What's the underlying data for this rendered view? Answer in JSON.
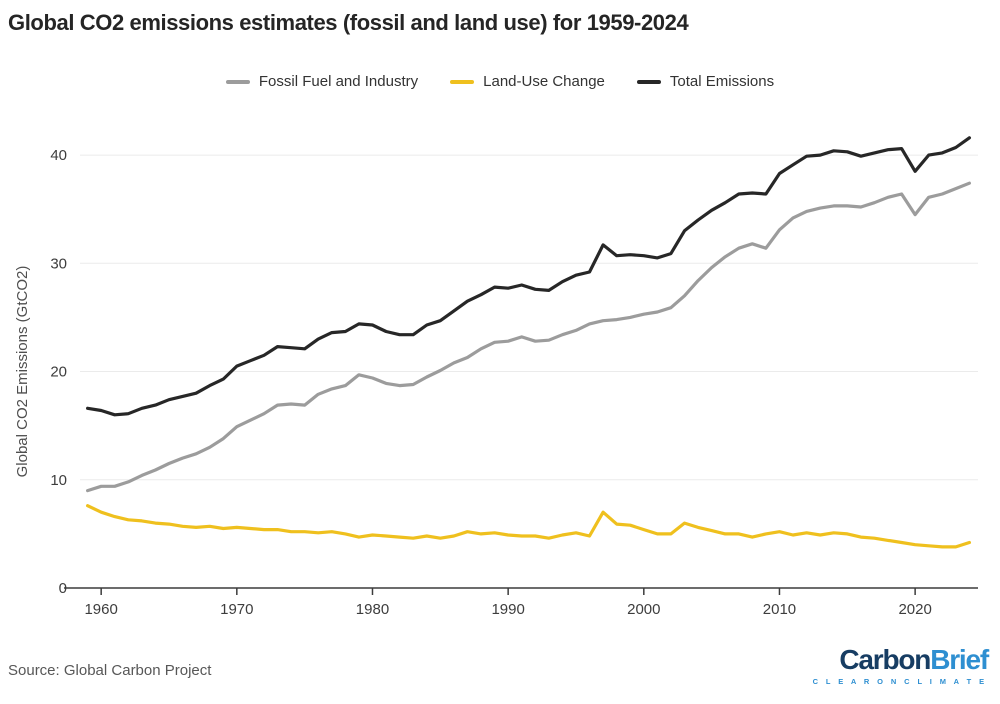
{
  "header": {
    "note": "title lives in chart_data.title"
  },
  "source": {
    "text": "Source: Global Carbon Project"
  },
  "logo": {
    "part1": "Carbon",
    "part2": "Brief",
    "tagline": "C L E A R   O N   C L I M A T E",
    "navy": "#173d63",
    "blue": "#2e8fd1"
  },
  "chart_data": {
    "type": "line",
    "title": "Global CO2 emissions estimates (fossil and land use) for 1959-2024",
    "xlabel": "",
    "ylabel": "Global CO2 Emissions (GtCO2)",
    "xlim": [
      1959,
      2024
    ],
    "ylim": [
      0,
      44
    ],
    "yticks": [
      0,
      10,
      20,
      30,
      40
    ],
    "xticks": [
      1960,
      1970,
      1980,
      1990,
      2000,
      2010,
      2020
    ],
    "grid": "horizontal",
    "legend_position": "top-center",
    "background": "#ffffff",
    "gridline_color": "#ebebeb",
    "axis_color": "#3c3c3c",
    "x": [
      1959,
      1960,
      1961,
      1962,
      1963,
      1964,
      1965,
      1966,
      1967,
      1968,
      1969,
      1970,
      1971,
      1972,
      1973,
      1974,
      1975,
      1976,
      1977,
      1978,
      1979,
      1980,
      1981,
      1982,
      1983,
      1984,
      1985,
      1986,
      1987,
      1988,
      1989,
      1990,
      1991,
      1992,
      1993,
      1994,
      1995,
      1996,
      1997,
      1998,
      1999,
      2000,
      2001,
      2002,
      2003,
      2004,
      2005,
      2006,
      2007,
      2008,
      2009,
      2010,
      2011,
      2012,
      2013,
      2014,
      2015,
      2016,
      2017,
      2018,
      2019,
      2020,
      2021,
      2022,
      2023,
      2024
    ],
    "series": [
      {
        "name": "Fossil Fuel and Industry",
        "color": "#9c9c9c",
        "values": [
          9.0,
          9.4,
          9.4,
          9.8,
          10.4,
          10.9,
          11.5,
          12.0,
          12.4,
          13.0,
          13.8,
          14.9,
          15.5,
          16.1,
          16.9,
          17.0,
          16.9,
          17.9,
          18.4,
          18.7,
          19.7,
          19.4,
          18.9,
          18.7,
          18.8,
          19.5,
          20.1,
          20.8,
          21.3,
          22.1,
          22.7,
          22.8,
          23.2,
          22.8,
          22.9,
          23.4,
          23.8,
          24.4,
          24.7,
          24.8,
          25.0,
          25.3,
          25.5,
          25.9,
          27.0,
          28.4,
          29.6,
          30.6,
          31.4,
          31.8,
          31.4,
          33.1,
          34.2,
          34.8,
          35.1,
          35.3,
          35.3,
          35.2,
          35.6,
          36.1,
          36.4,
          34.5,
          36.1,
          36.4,
          36.9,
          37.4
        ]
      },
      {
        "name": "Land-Use Change",
        "color": "#efc01e",
        "values": [
          7.6,
          7.0,
          6.6,
          6.3,
          6.2,
          6.0,
          5.9,
          5.7,
          5.6,
          5.7,
          5.5,
          5.6,
          5.5,
          5.4,
          5.4,
          5.2,
          5.2,
          5.1,
          5.2,
          5.0,
          4.7,
          4.9,
          4.8,
          4.7,
          4.6,
          4.8,
          4.6,
          4.8,
          5.2,
          5.0,
          5.1,
          4.9,
          4.8,
          4.8,
          4.6,
          4.9,
          5.1,
          4.8,
          7.0,
          5.9,
          5.8,
          5.4,
          5.0,
          5.0,
          6.0,
          5.6,
          5.3,
          5.0,
          5.0,
          4.7,
          5.0,
          5.2,
          4.9,
          5.1,
          4.9,
          5.1,
          5.0,
          4.7,
          4.6,
          4.4,
          4.2,
          4.0,
          3.9,
          3.8,
          3.8,
          4.2
        ]
      },
      {
        "name": "Total Emissions",
        "color": "#272727",
        "values": [
          16.6,
          16.4,
          16.0,
          16.1,
          16.6,
          16.9,
          17.4,
          17.7,
          18.0,
          18.7,
          19.3,
          20.5,
          21.0,
          21.5,
          22.3,
          22.2,
          22.1,
          23.0,
          23.6,
          23.7,
          24.4,
          24.3,
          23.7,
          23.4,
          23.4,
          24.3,
          24.7,
          25.6,
          26.5,
          27.1,
          27.8,
          27.7,
          28.0,
          27.6,
          27.5,
          28.3,
          28.9,
          29.2,
          31.7,
          30.7,
          30.8,
          30.7,
          30.5,
          30.9,
          33.0,
          34.0,
          34.9,
          35.6,
          36.4,
          36.5,
          36.4,
          38.3,
          39.1,
          39.9,
          40.0,
          40.4,
          40.3,
          39.9,
          40.2,
          40.5,
          40.6,
          38.5,
          40.0,
          40.2,
          40.7,
          41.6
        ]
      }
    ]
  }
}
